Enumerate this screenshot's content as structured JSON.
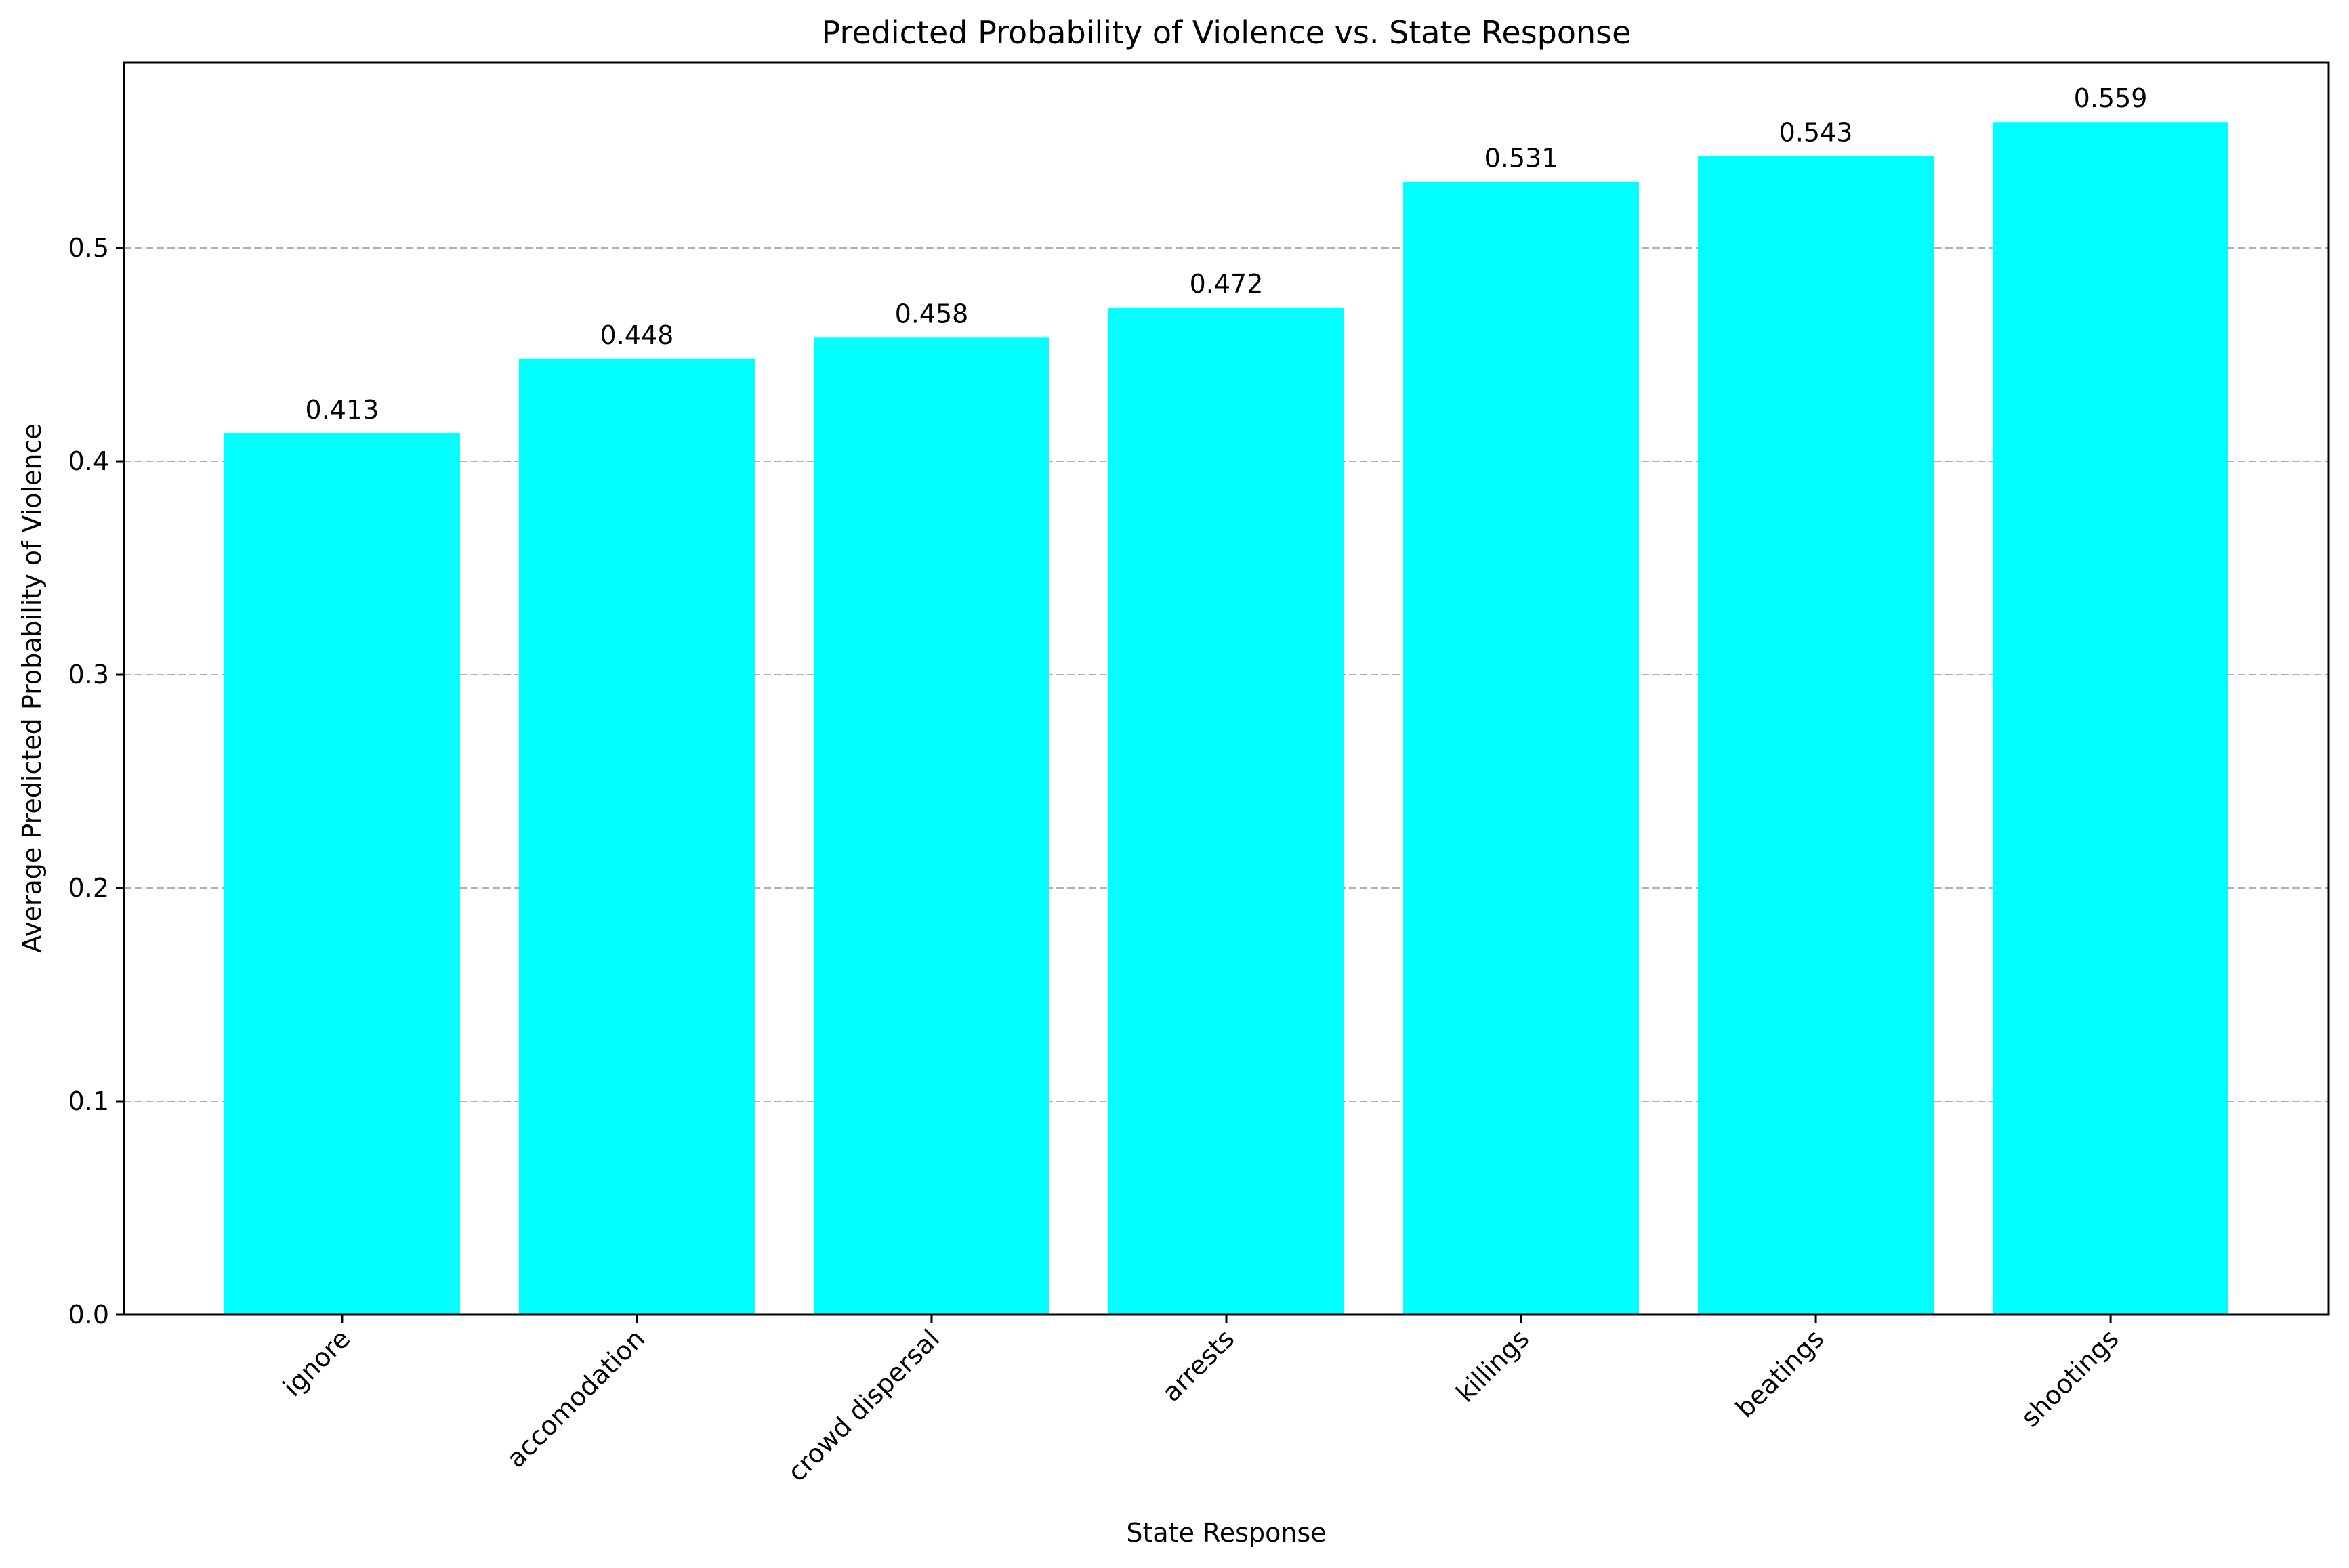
{
  "chart_data": {
    "type": "bar",
    "title": "Predicted Probability of Violence vs. State Response",
    "xlabel": "State Response",
    "ylabel": "Average Predicted Probability of Violence",
    "categories": [
      "ignore",
      "accomodation",
      "crowd dispersal",
      "arrests",
      "killings",
      "beatings",
      "shootings"
    ],
    "values": [
      0.413,
      0.448,
      0.458,
      0.472,
      0.531,
      0.543,
      0.559
    ],
    "value_labels": [
      "0.413",
      "0.448",
      "0.458",
      "0.472",
      "0.531",
      "0.543",
      "0.559"
    ],
    "ylim": [
      0,
      0.587
    ],
    "yticks": [
      0.0,
      0.1,
      0.2,
      0.3,
      0.4,
      0.5
    ],
    "ytick_labels": [
      "0.0",
      "0.1",
      "0.2",
      "0.3",
      "0.4",
      "0.5"
    ],
    "grid": "y-dashed",
    "bar_color": "#00ffff",
    "legend": "none"
  }
}
